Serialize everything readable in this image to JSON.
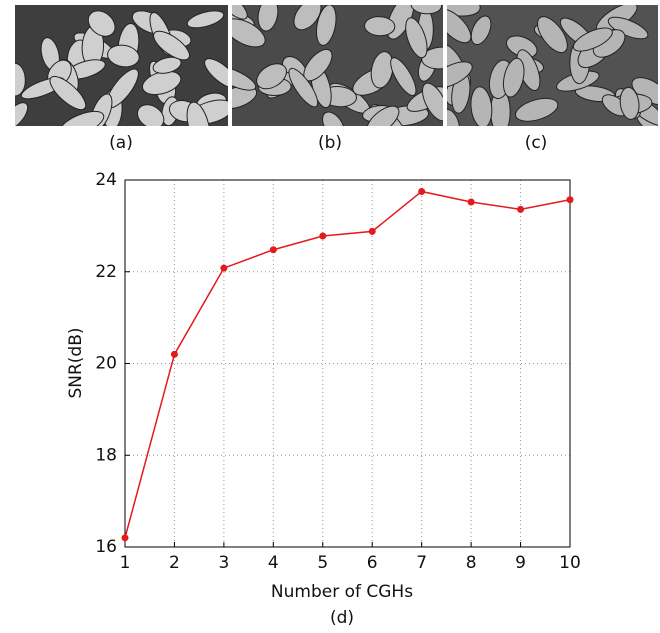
{
  "captions": [
    "(a)",
    "(b)",
    "(c)"
  ],
  "chart_data": {
    "type": "line",
    "x": [
      1,
      2,
      3,
      4,
      5,
      6,
      7,
      8,
      9,
      10
    ],
    "series": [
      {
        "color": "#e41a1c",
        "values": [
          16.2,
          20.2,
          22.08,
          22.48,
          22.78,
          22.88,
          23.75,
          23.52,
          23.36,
          23.57
        ]
      }
    ],
    "xlim": [
      1,
      10
    ],
    "ylim": [
      16,
      24
    ],
    "xticks": [
      1,
      2,
      3,
      4,
      5,
      6,
      7,
      8,
      9,
      10
    ],
    "yticks": [
      16,
      18,
      20,
      22,
      24
    ],
    "grid": true,
    "xlabel": "Number of CGHs",
    "ylabel": "SNR(dB)",
    "caption": "(d)"
  }
}
